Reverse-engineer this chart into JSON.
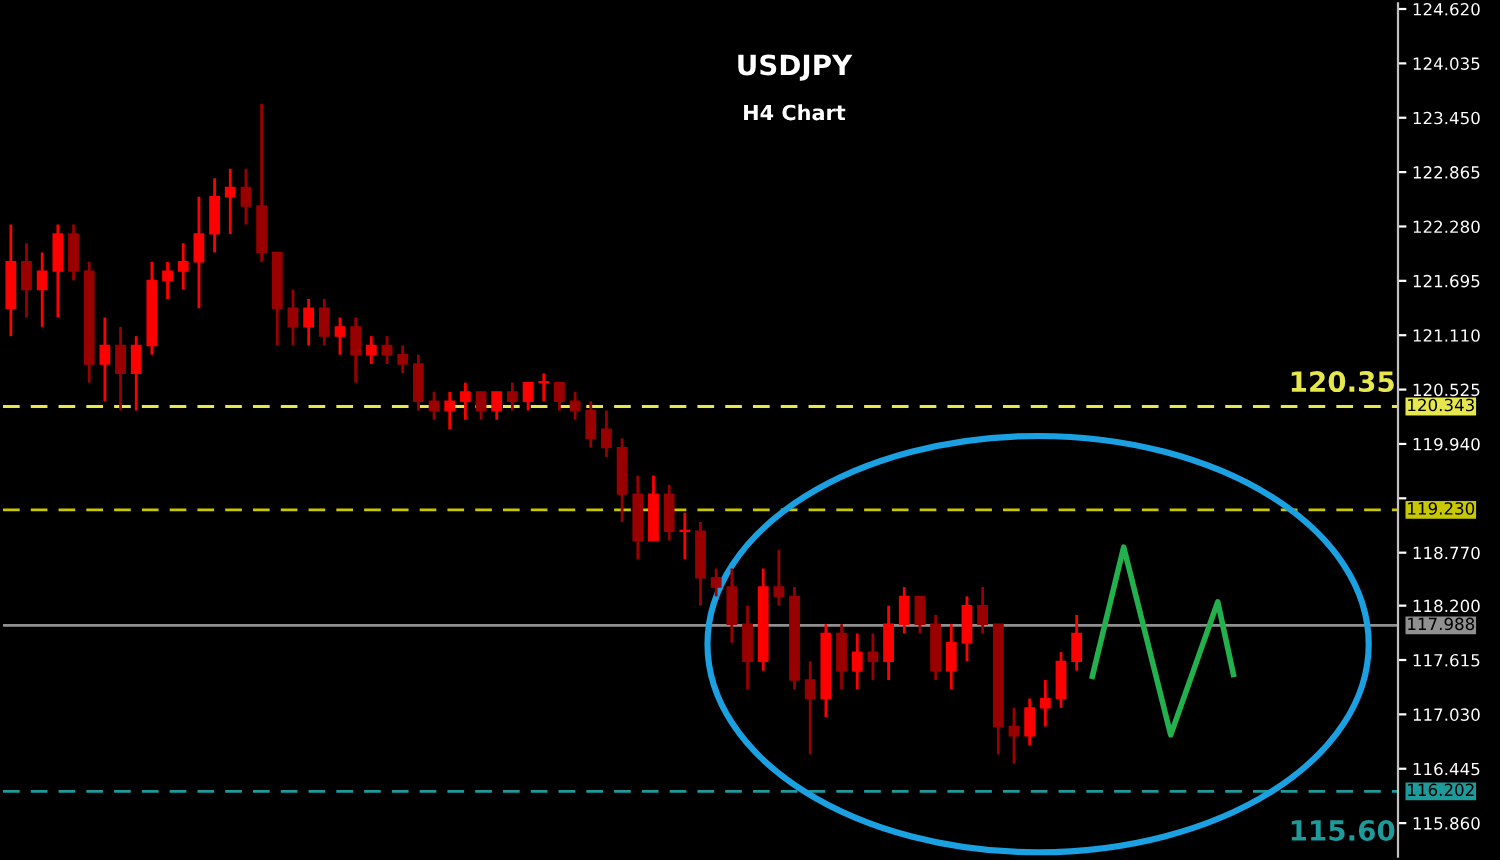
{
  "chart_data": {
    "type": "candlestick",
    "title": "USDJPY",
    "subtitle": "H4 Chart",
    "colors": [
      "#ff0000",
      "#990000",
      "#ff0000",
      "#ff0000",
      "#990000",
      "#990000",
      "#ff0000",
      "#990000",
      "#ff0000",
      "#ff0000",
      "#ff0000",
      "#ff0000",
      "#ff0000",
      "#ff0000",
      "#ff0000",
      "#990000",
      "#990000",
      "#990000",
      "#990000",
      "#ff0000",
      "#990000",
      "#ff0000",
      "#990000",
      "#ff0000",
      "#990000",
      "#990000",
      "#990000",
      "#990000",
      "#ff0000",
      "#ff0000",
      "#990000",
      "#ff0000",
      "#990000",
      "#ff0000",
      "#ff0000",
      "#990000",
      "#990000",
      "#990000",
      "#990000",
      "#990000",
      "#990000",
      "#ff0000",
      "#990000",
      "#ff0000",
      "#990000",
      "#990000",
      "#990000",
      "#990000",
      "#ff0000",
      "#990000",
      "#990000",
      "#990000",
      "#ff0000",
      "#990000",
      "#ff0000",
      "#990000",
      "#ff0000",
      "#ff0000",
      "#990000",
      "#990000",
      "#ff0000",
      "#ff0000",
      "#990000",
      "#990000",
      "#990000",
      "#ff0000",
      "#ff0000",
      "#ff0000",
      "#ff0000",
      null,
      null,
      null,
      null,
      null,
      null,
      null,
      null,
      null,
      null,
      null,
      null,
      null,
      null,
      null,
      null,
      null,
      null,
      null,
      null
    ],
    "categories": [
      null,
      null,
      null,
      null,
      null,
      null,
      null,
      null,
      null,
      null,
      null,
      null,
      null,
      null,
      null,
      null,
      null,
      null,
      null,
      null,
      null,
      null,
      null,
      null,
      null,
      null,
      null,
      null,
      null,
      null,
      null,
      null,
      null,
      null,
      null,
      null,
      null,
      null,
      null,
      null,
      null,
      null,
      null,
      null,
      null,
      null,
      null,
      null,
      null,
      null,
      null,
      null,
      null,
      null,
      null,
      null,
      null,
      null,
      null,
      null,
      null,
      null,
      null,
      null,
      null,
      null,
      null,
      null,
      null,
      null,
      null,
      null,
      null,
      null,
      null,
      null,
      null,
      null,
      null,
      null,
      null,
      null,
      null,
      null,
      null,
      null,
      null,
      null,
      null
    ],
    "ohlc": [
      [
        121.4,
        122.3,
        121.1,
        121.9
      ],
      [
        121.9,
        122.1,
        121.3,
        121.6
      ],
      [
        121.6,
        122.0,
        121.2,
        121.8
      ],
      [
        121.8,
        122.3,
        121.3,
        122.2
      ],
      [
        122.2,
        122.3,
        121.7,
        121.8
      ],
      [
        121.8,
        121.9,
        120.6,
        120.8
      ],
      [
        120.8,
        121.3,
        120.4,
        121.0
      ],
      [
        121.0,
        121.2,
        120.3,
        120.7
      ],
      [
        120.7,
        121.1,
        120.3,
        121.0
      ],
      [
        121.0,
        121.9,
        120.9,
        121.7
      ],
      [
        121.7,
        121.9,
        121.5,
        121.8
      ],
      [
        121.8,
        122.1,
        121.6,
        121.9
      ],
      [
        121.9,
        122.6,
        121.4,
        122.2
      ],
      [
        122.2,
        122.8,
        122.0,
        122.6
      ],
      [
        122.6,
        122.9,
        122.2,
        122.7
      ],
      [
        122.7,
        122.9,
        122.3,
        122.5
      ],
      [
        122.5,
        123.6,
        121.9,
        122.0
      ],
      [
        122.0,
        122.0,
        121.0,
        121.4
      ],
      [
        121.4,
        121.6,
        121.0,
        121.2
      ],
      [
        121.2,
        121.5,
        121.0,
        121.4
      ],
      [
        121.4,
        121.5,
        121.0,
        121.1
      ],
      [
        121.1,
        121.3,
        120.9,
        121.2
      ],
      [
        121.2,
        121.3,
        120.6,
        120.9
      ],
      [
        120.9,
        121.1,
        120.8,
        121.0
      ],
      [
        121.0,
        121.1,
        120.8,
        120.9
      ],
      [
        120.9,
        121.0,
        120.7,
        120.8
      ],
      [
        120.8,
        120.9,
        120.3,
        120.4
      ],
      [
        120.4,
        120.5,
        120.2,
        120.3
      ],
      [
        120.3,
        120.5,
        120.1,
        120.4
      ],
      [
        120.4,
        120.6,
        120.2,
        120.5
      ],
      [
        120.5,
        120.5,
        120.2,
        120.3
      ],
      [
        120.3,
        120.5,
        120.2,
        120.5
      ],
      [
        120.5,
        120.6,
        120.3,
        120.4
      ],
      [
        120.4,
        120.6,
        120.3,
        120.6
      ],
      [
        120.6,
        120.7,
        120.4,
        120.6
      ],
      [
        120.6,
        120.6,
        120.3,
        120.4
      ],
      [
        120.4,
        120.5,
        120.2,
        120.3
      ],
      [
        120.3,
        120.4,
        119.9,
        120.0
      ],
      [
        120.1,
        120.3,
        119.8,
        119.9
      ],
      [
        119.9,
        120.0,
        119.1,
        119.4
      ],
      [
        119.4,
        119.6,
        118.7,
        118.9
      ],
      [
        118.9,
        119.6,
        118.9,
        119.4
      ],
      [
        119.4,
        119.5,
        118.9,
        119.0
      ],
      [
        119.0,
        119.2,
        118.7,
        119.0
      ],
      [
        119.0,
        119.1,
        118.2,
        118.5
      ],
      [
        118.5,
        118.6,
        118.3,
        118.4
      ],
      [
        118.4,
        118.6,
        117.8,
        118.0
      ],
      [
        118.0,
        118.2,
        117.3,
        117.6
      ],
      [
        117.6,
        118.6,
        117.5,
        118.4
      ],
      [
        118.4,
        118.8,
        118.2,
        118.3
      ],
      [
        118.3,
        118.4,
        117.3,
        117.4
      ],
      [
        117.4,
        117.6,
        116.6,
        117.2
      ],
      [
        117.2,
        118.0,
        117.0,
        117.9
      ],
      [
        117.9,
        118.0,
        117.3,
        117.5
      ],
      [
        117.5,
        117.9,
        117.3,
        117.7
      ],
      [
        117.7,
        117.9,
        117.4,
        117.6
      ],
      [
        117.6,
        118.2,
        117.4,
        118.0
      ],
      [
        118.0,
        118.4,
        117.9,
        118.3
      ],
      [
        118.3,
        118.3,
        117.9,
        118.0
      ],
      [
        118.0,
        118.1,
        117.4,
        117.5
      ],
      [
        117.5,
        118.0,
        117.3,
        117.8
      ],
      [
        117.8,
        118.3,
        117.6,
        118.2
      ],
      [
        118.2,
        118.4,
        117.9,
        118.0
      ],
      [
        118.0,
        118.0,
        116.6,
        116.9
      ],
      [
        116.9,
        117.1,
        116.5,
        116.8
      ],
      [
        116.8,
        117.2,
        116.7,
        117.1
      ],
      [
        117.1,
        117.4,
        116.9,
        117.2
      ],
      [
        117.2,
        117.7,
        117.1,
        117.6
      ],
      [
        117.6,
        118.1,
        117.5,
        117.9
      ],
      null,
      null,
      null,
      null,
      null,
      null,
      null,
      null,
      null,
      null,
      null,
      null,
      null,
      null,
      null,
      null,
      null,
      null,
      null,
      null
    ],
    "series": [
      {
        "type": "line",
        "color": "#22b14c",
        "values": [
          null,
          null,
          null,
          null,
          null,
          null,
          null,
          null,
          null,
          null,
          null,
          null,
          null,
          null,
          null,
          null,
          null,
          null,
          null,
          null,
          null,
          null,
          null,
          null,
          null,
          null,
          null,
          null,
          null,
          null,
          null,
          null,
          null,
          null,
          null,
          null,
          null,
          null,
          null,
          null,
          null,
          null,
          null,
          null,
          null,
          null,
          null,
          null,
          null,
          null,
          null,
          null,
          null,
          null,
          null,
          null,
          null,
          null,
          null,
          null,
          null,
          null,
          null,
          null,
          null,
          null,
          null,
          null,
          null,
          117.44,
          null,
          118.83,
          null,
          null,
          116.81,
          null,
          null,
          118.24,
          117.46,
          null,
          null,
          null,
          null,
          null,
          null,
          null,
          null,
          null,
          null
        ]
      }
    ],
    "ylim": [
      115.5,
      124.68
    ],
    "yticks": [
      {
        "value": 124.62,
        "label": "124.620"
      },
      {
        "value": 124.035,
        "label": "124.035"
      },
      {
        "value": 123.45,
        "label": "123.450"
      },
      {
        "value": 122.865,
        "label": "122.865"
      },
      {
        "value": 122.28,
        "label": "122.280"
      },
      {
        "value": 121.695,
        "label": "121.695"
      },
      {
        "value": 121.11,
        "label": "121.110"
      },
      {
        "value": 120.525,
        "label": "120.525"
      },
      {
        "value": 119.94,
        "label": "119.940"
      },
      {
        "value": 119.355,
        "label": null
      },
      {
        "value": 118.77,
        "label": "118.770"
      },
      {
        "value": 118.2,
        "label": "118.200"
      },
      {
        "value": 117.615,
        "label": "117.615"
      },
      {
        "value": 117.03,
        "label": "117.030"
      },
      {
        "value": 116.445,
        "label": "116.445"
      },
      {
        "value": 115.86,
        "label": "115.860"
      }
    ],
    "tick_labels": "y",
    "grid": false,
    "ref_lines": [
      {
        "axis": "y",
        "value": 120.343,
        "label": "120.343",
        "color": "#e6e64d",
        "line_style": "dashed"
      },
      {
        "axis": "y",
        "value": 119.23,
        "label": "119.230",
        "color": "#c8c800",
        "line_style": "dashed"
      },
      {
        "axis": "y",
        "value": 117.988,
        "label": "117.988",
        "color": "#909090",
        "line_style": "solid"
      },
      {
        "axis": "y",
        "value": 116.202,
        "label": "116.202",
        "color": "#1f9a9a",
        "line_style": "dashed"
      }
    ],
    "annotations": [
      {
        "text": "120.35",
        "y": 120.35
      },
      "115.60"
    ]
  }
}
